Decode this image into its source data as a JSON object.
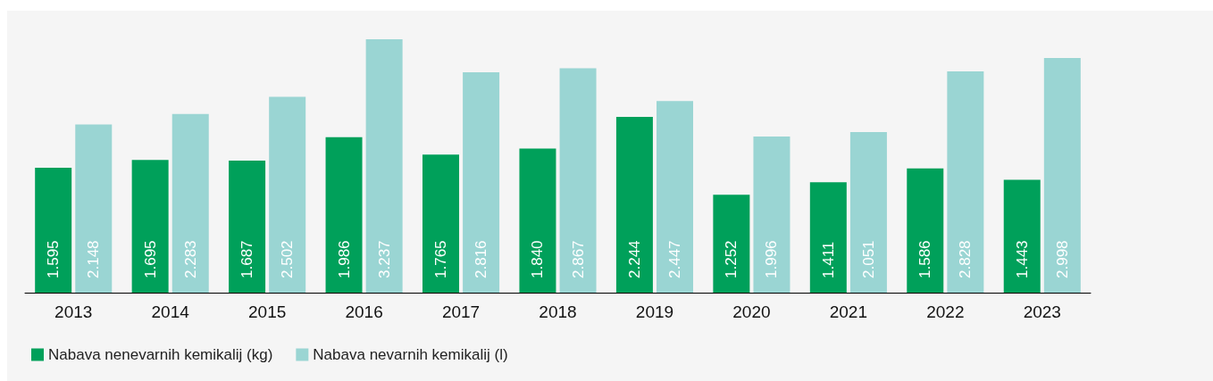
{
  "chart_data": {
    "type": "bar",
    "categories": [
      "2013",
      "2014",
      "2015",
      "2016",
      "2017",
      "2018",
      "2019",
      "2020",
      "2021",
      "2022",
      "2023"
    ],
    "series": [
      {
        "name": "Nabava nenevarnih kemikalij (kg)",
        "color": "#00a05a",
        "values": [
          1595,
          1695,
          1687,
          1986,
          1765,
          1840,
          2244,
          1252,
          1411,
          1586,
          1443
        ],
        "value_labels": [
          "1.595",
          "1.695",
          "1.687",
          "1.986",
          "1.765",
          "1.840",
          "2.244",
          "1.252",
          "1.411",
          "1.586",
          "1.443"
        ]
      },
      {
        "name": "Nabava nevarnih kemikalij (l)",
        "color": "#9ad5d3",
        "values": [
          2148,
          2283,
          2502,
          3237,
          2816,
          2867,
          2447,
          1996,
          2051,
          2828,
          2998
        ],
        "value_labels": [
          "2.148",
          "2.283",
          "2.502",
          "3.237",
          "2.816",
          "2.867",
          "2.447",
          "1.996",
          "2.051",
          "2.828",
          "2.998"
        ]
      }
    ],
    "legend": "bottom left"
  }
}
